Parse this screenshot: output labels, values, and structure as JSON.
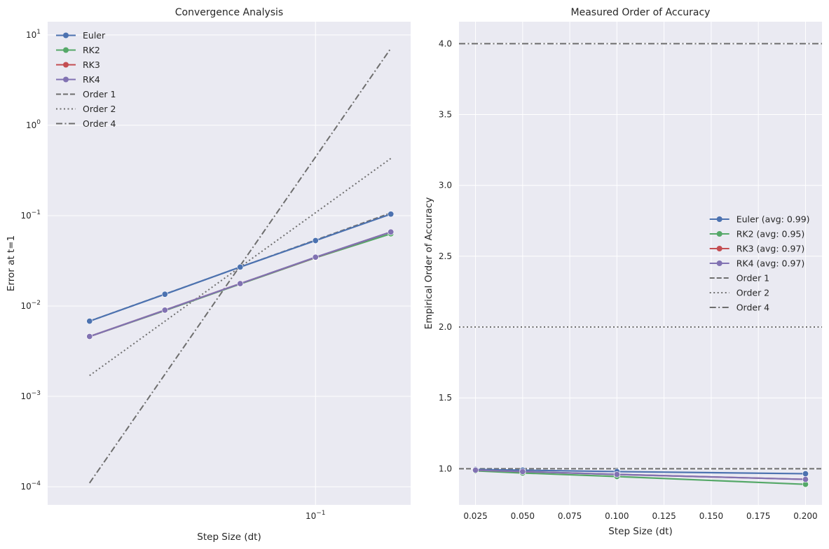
{
  "chart_data": [
    {
      "type": "line",
      "title": "Convergence Analysis",
      "xlabel": "Step Size (dt)",
      "ylabel": "Error at t=1",
      "xscale": "log",
      "yscale": "log",
      "xlim": [
        0.0085,
        0.24
      ],
      "ylim": [
        6.3e-05,
        14
      ],
      "grid": true,
      "legend_position": "top-left",
      "x_ticks": [
        {
          "value": 0.1,
          "base": "10",
          "exp": "−1"
        }
      ],
      "y_ticks": [
        {
          "value": 0.0001,
          "base": "10",
          "exp": "−4"
        },
        {
          "value": 0.001,
          "base": "10",
          "exp": "−3"
        },
        {
          "value": 0.01,
          "base": "10",
          "exp": "−2"
        },
        {
          "value": 0.1,
          "base": "10",
          "exp": "−1"
        },
        {
          "value": 1,
          "base": "10",
          "exp": "0"
        },
        {
          "value": 10,
          "base": "10",
          "exp": "1"
        }
      ],
      "series": [
        {
          "name": "Euler",
          "color": "#4c72b0",
          "marker": true,
          "dash": "solid",
          "x": [
            0.0125,
            0.025,
            0.05,
            0.1,
            0.2
          ],
          "y": [
            0.0068,
            0.0135,
            0.027,
            0.053,
            0.104
          ]
        },
        {
          "name": "RK2",
          "color": "#55a868",
          "marker": true,
          "dash": "solid",
          "x": [
            0.0125,
            0.025,
            0.05,
            0.1,
            0.2
          ],
          "y": [
            0.0046,
            0.0089,
            0.0175,
            0.0342,
            0.063
          ]
        },
        {
          "name": "RK3",
          "color": "#c44e52",
          "marker": true,
          "dash": "solid",
          "x": [
            0.0125,
            0.025,
            0.05,
            0.1,
            0.2
          ],
          "y": [
            0.0046,
            0.009,
            0.0177,
            0.0345,
            0.066
          ]
        },
        {
          "name": "RK4",
          "color": "#8172b2",
          "marker": true,
          "dash": "solid",
          "x": [
            0.0125,
            0.025,
            0.05,
            0.1,
            0.2
          ],
          "y": [
            0.0046,
            0.009,
            0.0177,
            0.0347,
            0.066
          ]
        },
        {
          "name": "Order 1",
          "color": "#6e6e6e",
          "marker": false,
          "dash": "dashed",
          "x": [
            0.0125,
            0.2
          ],
          "y": [
            0.0068,
            0.107
          ]
        },
        {
          "name": "Order 2",
          "color": "#6e6e6e",
          "marker": false,
          "dash": "dotted",
          "x": [
            0.0125,
            0.2
          ],
          "y": [
            0.0017,
            0.43
          ]
        },
        {
          "name": "Order 4",
          "color": "#6e6e6e",
          "marker": false,
          "dash": "dashdot",
          "x": [
            0.0125,
            0.2
          ],
          "y": [
            0.00011,
            7.1
          ]
        }
      ]
    },
    {
      "type": "line",
      "title": "Measured Order of Accuracy",
      "xlabel": "Step Size (dt)",
      "ylabel": "Empirical Order of Accuracy",
      "xscale": "linear",
      "yscale": "linear",
      "xlim": [
        0.01625,
        0.20875
      ],
      "ylim": [
        0.745,
        4.155
      ],
      "grid": true,
      "legend_position": "center-right",
      "x_ticks": [
        {
          "value": 0.025,
          "label": "0.025"
        },
        {
          "value": 0.05,
          "label": "0.050"
        },
        {
          "value": 0.075,
          "label": "0.075"
        },
        {
          "value": 0.1,
          "label": "0.100"
        },
        {
          "value": 0.125,
          "label": "0.125"
        },
        {
          "value": 0.15,
          "label": "0.150"
        },
        {
          "value": 0.175,
          "label": "0.175"
        },
        {
          "value": 0.2,
          "label": "0.200"
        }
      ],
      "y_ticks": [
        {
          "value": 1.0,
          "label": "1.0"
        },
        {
          "value": 1.5,
          "label": "1.5"
        },
        {
          "value": 2.0,
          "label": "2.0"
        },
        {
          "value": 2.5,
          "label": "2.5"
        },
        {
          "value": 3.0,
          "label": "3.0"
        },
        {
          "value": 3.5,
          "label": "3.5"
        },
        {
          "value": 4.0,
          "label": "4.0"
        }
      ],
      "series": [
        {
          "name": "Euler (avg: 0.99)",
          "color": "#4c72b0",
          "marker": true,
          "dash": "solid",
          "x": [
            0.025,
            0.05,
            0.1,
            0.2
          ],
          "y": [
            0.995,
            0.99,
            0.98,
            0.965
          ]
        },
        {
          "name": "RK2 (avg: 0.95)",
          "color": "#55a868",
          "marker": true,
          "dash": "solid",
          "x": [
            0.025,
            0.05,
            0.1,
            0.2
          ],
          "y": [
            0.985,
            0.97,
            0.945,
            0.89
          ]
        },
        {
          "name": "RK3 (avg: 0.97)",
          "color": "#c44e52",
          "marker": true,
          "dash": "solid",
          "x": [
            0.025,
            0.05,
            0.1,
            0.2
          ],
          "y": [
            0.99,
            0.98,
            0.96,
            0.925
          ]
        },
        {
          "name": "RK4 (avg: 0.97)",
          "color": "#8172b2",
          "marker": true,
          "dash": "solid",
          "x": [
            0.025,
            0.05,
            0.1,
            0.2
          ],
          "y": [
            0.99,
            0.98,
            0.96,
            0.925
          ]
        },
        {
          "name": "Order 1",
          "color": "#6e6e6e",
          "marker": false,
          "dash": "dashed",
          "hline": 1.0
        },
        {
          "name": "Order 2",
          "color": "#6e6e6e",
          "marker": false,
          "dash": "dotted",
          "hline": 2.0
        },
        {
          "name": "Order 4",
          "color": "#6e6e6e",
          "marker": false,
          "dash": "dashdot",
          "hline": 4.0
        }
      ]
    }
  ]
}
